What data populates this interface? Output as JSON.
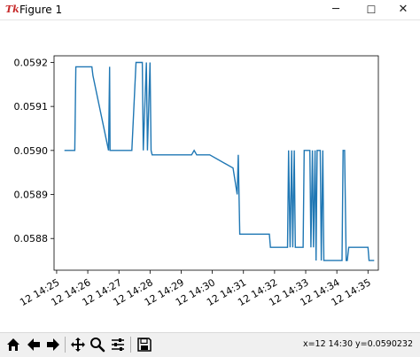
{
  "window": {
    "title": "Figure 1",
    "icon_glyph": "Tk",
    "minimize_glyph": "─",
    "maximize_glyph": "☐",
    "close_glyph": "✕"
  },
  "toolbar": {
    "buttons": [
      "home-icon",
      "back-icon",
      "forward-icon",
      "pan-icon",
      "zoom-icon",
      "configure-subplots-icon",
      "save-icon"
    ],
    "coords_text": "x=12 14:30 y=0.0590232"
  },
  "chart_data": {
    "type": "line",
    "xlabel": "",
    "ylabel": "",
    "title": "",
    "x_minutes": [
      25.25,
      35.0
    ],
    "xlim": [
      "12 14:24:55",
      "12 14:35:20"
    ],
    "ylim": [
      0.058728,
      0.059215
    ],
    "x_ticks": [
      "12 14:25",
      "12 14:26",
      "12 14:27",
      "12 14:28",
      "12 14:29",
      "12 14:30",
      "12 14:31",
      "12 14:32",
      "12 14:33",
      "12 14:34",
      "12 14:35"
    ],
    "y_ticks": [
      "0.0588",
      "0.0589",
      "0.0590",
      "0.0591",
      "0.0592"
    ],
    "y_tick_values": [
      0.0588,
      0.0589,
      0.059,
      0.0591,
      0.0592
    ],
    "line_color": "#1f77b4",
    "series": [
      {
        "x": [
          "14:25:15",
          "14:25:35",
          "14:25:37",
          "14:26:08",
          "14:26:10",
          "14:26:40",
          "14:26:42",
          "14:26:43",
          "14:27:25",
          "14:27:33",
          "14:27:45",
          "14:27:47",
          "14:27:53",
          "14:27:55",
          "14:28:00",
          "14:28:02",
          "14:28:04",
          "14:29:20",
          "14:29:25",
          "14:29:30",
          "14:29:45",
          "14:29:55",
          "14:30:40",
          "14:30:48",
          "14:30:50",
          "14:30:53",
          "14:30:55",
          "14:31:30",
          "14:31:32",
          "14:31:34",
          "14:31:50",
          "14:31:52",
          "14:32:10",
          "14:32:12",
          "14:32:25",
          "14:32:27",
          "14:32:30",
          "14:32:33",
          "14:32:35",
          "14:32:38",
          "14:32:40",
          "14:32:55",
          "14:32:57",
          "14:33:08",
          "14:33:10",
          "14:33:13",
          "14:33:15",
          "14:33:18",
          "14:33:20",
          "14:33:22",
          "14:33:28",
          "14:33:30",
          "14:33:33",
          "14:33:35",
          "14:34:10",
          "14:34:12",
          "14:34:15",
          "14:34:18",
          "14:34:20",
          "14:34:23",
          "14:34:25",
          "14:35:00",
          "14:35:02",
          "14:35:05",
          "14:35:10",
          "14:35:12"
        ],
        "y": [
          0.059,
          0.059,
          0.05919,
          0.05919,
          0.05917,
          0.059,
          0.05919,
          0.059,
          0.059,
          0.0592,
          0.0592,
          0.059,
          0.0592,
          0.059,
          0.0592,
          0.059,
          0.05899,
          0.05899,
          0.059,
          0.05899,
          0.05899,
          0.05899,
          0.05896,
          0.0589,
          0.05899,
          0.05881,
          0.05881,
          0.05881,
          0.05881,
          0.05881,
          0.05881,
          0.05878,
          0.05878,
          0.05878,
          0.05878,
          0.059,
          0.05878,
          0.059,
          0.05878,
          0.059,
          0.05878,
          0.05878,
          0.059,
          0.059,
          0.05878,
          0.059,
          0.05878,
          0.059,
          0.05875,
          0.059,
          0.059,
          0.05875,
          0.059,
          0.05875,
          0.05875,
          0.059,
          0.059,
          0.05875,
          0.05875,
          0.05878,
          0.05878,
          0.05878,
          0.05875,
          0.05875,
          0.05875,
          0.05875
        ]
      }
    ]
  }
}
